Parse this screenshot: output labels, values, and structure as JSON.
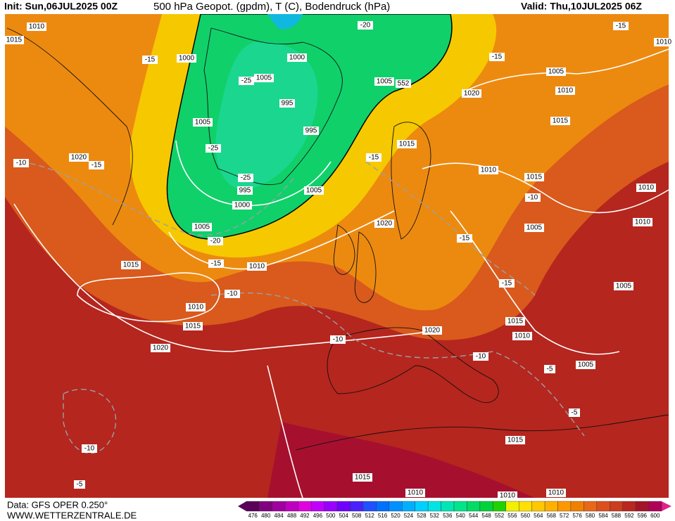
{
  "header": {
    "init": "Init: Sun,06JUL2025 00Z",
    "title": "500 hPa Geopot. (gpdm), T (C), Bodendruck (hPa)",
    "valid": "Valid: Thu,10JUL2025 06Z"
  },
  "footer": {
    "data": "Data: GFS OPER 0.250°",
    "url": "WWW.WETTERZENTRALE.DE"
  },
  "colorbar": {
    "values": [
      476,
      480,
      484,
      488,
      492,
      496,
      500,
      504,
      508,
      512,
      516,
      520,
      524,
      528,
      532,
      536,
      540,
      544,
      548,
      552,
      556,
      560,
      564,
      568,
      572,
      576,
      580,
      584,
      588,
      592,
      596,
      600
    ],
    "colors": [
      "#5a005a",
      "#80007f",
      "#a000a0",
      "#c000c0",
      "#e000e0",
      "#c000ff",
      "#9a00ff",
      "#7000ff",
      "#4a20ff",
      "#2050ff",
      "#0070ff",
      "#0090ff",
      "#00b0ff",
      "#00d0ff",
      "#00e4e4",
      "#00e6b4",
      "#00e48a",
      "#00dc64",
      "#00d23c",
      "#20d200",
      "#f0f000",
      "#ffe000",
      "#ffc800",
      "#ffb000",
      "#ff9800",
      "#f08000",
      "#e86818",
      "#dc501e",
      "#cc3c1e",
      "#b8281e",
      "#a41428",
      "#b0005a"
    ]
  },
  "contour_labels": [
    1010,
    1015,
    1000,
    -15,
    1000,
    1005,
    -25,
    1005,
    552,
    995,
    1005,
    995,
    -25,
    1015,
    -15,
    1020,
    -15,
    -10,
    -25,
    995,
    1005,
    1000,
    1005,
    -20,
    1020,
    1015,
    -15,
    1010,
    -10,
    1010,
    1015,
    1020,
    -10,
    1020,
    -15,
    -15,
    1015,
    1010,
    -10,
    -5,
    1005,
    1005,
    1010,
    1010,
    1015,
    1005,
    -10,
    1010,
    1015,
    1010,
    1005,
    1020,
    -15,
    -15,
    1010,
    -20,
    -5,
    1015,
    -10,
    -5,
    1015,
    1010,
    1010,
    1010
  ]
}
